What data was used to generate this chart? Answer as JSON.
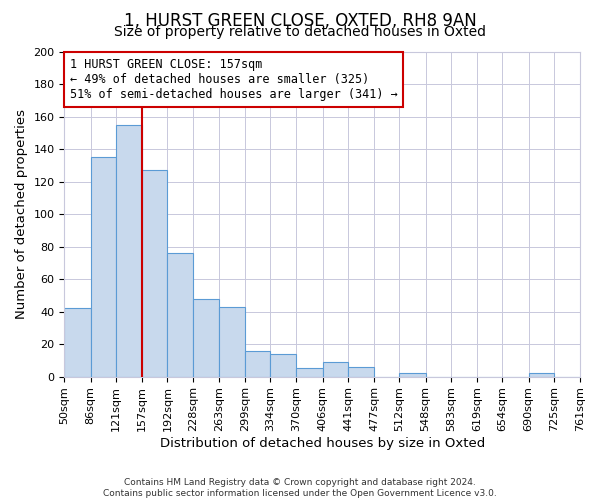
{
  "title": "1, HURST GREEN CLOSE, OXTED, RH8 9AN",
  "subtitle": "Size of property relative to detached houses in Oxted",
  "xlabel": "Distribution of detached houses by size in Oxted",
  "ylabel": "Number of detached properties",
  "footer_lines": [
    "Contains HM Land Registry data © Crown copyright and database right 2024.",
    "Contains public sector information licensed under the Open Government Licence v3.0."
  ],
  "bin_edges": [
    50,
    86,
    121,
    157,
    192,
    228,
    263,
    299,
    334,
    370,
    406,
    441,
    477,
    512,
    548,
    583,
    619,
    654,
    690,
    725,
    761
  ],
  "bin_counts": [
    42,
    135,
    155,
    127,
    76,
    48,
    43,
    16,
    14,
    5,
    9,
    6,
    0,
    2,
    0,
    0,
    0,
    0,
    2,
    0
  ],
  "bar_color": "#c8d9ed",
  "bar_edge_color": "#5b9bd5",
  "ref_line_x": 157,
  "ref_line_color": "#cc0000",
  "annotation_line1": "1 HURST GREEN CLOSE: 157sqm",
  "annotation_line2": "← 49% of detached houses are smaller (325)",
  "annotation_line3": "51% of semi-detached houses are larger (341) →",
  "annotation_box_edge_color": "#cc0000",
  "ylim": [
    0,
    200
  ],
  "yticks": [
    0,
    20,
    40,
    60,
    80,
    100,
    120,
    140,
    160,
    180,
    200
  ],
  "bg_color": "#ffffff",
  "grid_color": "#c8c8dc",
  "title_fontsize": 12,
  "subtitle_fontsize": 10,
  "axis_label_fontsize": 9.5,
  "tick_fontsize": 8,
  "annotation_fontsize": 8.5
}
